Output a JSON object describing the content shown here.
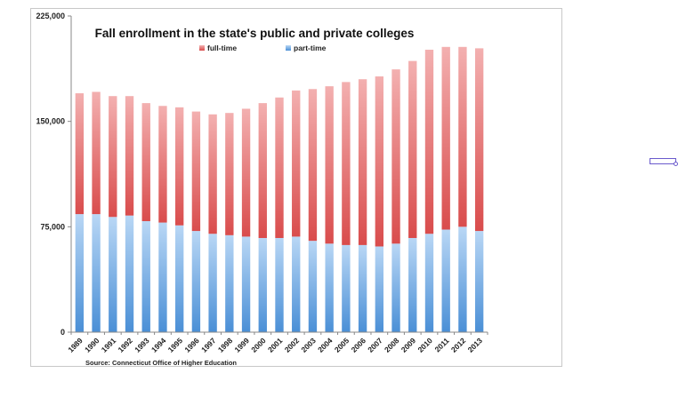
{
  "chart_data": {
    "type": "bar",
    "stacked": true,
    "title": "Fall enrollment in the state's public and private colleges",
    "source": "Source: Connecticut Office of Higher Education",
    "categories": [
      "1989",
      "1990",
      "1991",
      "1992",
      "1993",
      "1994",
      "1995",
      "1996",
      "1997",
      "1998",
      "1999",
      "2000",
      "2001",
      "2002",
      "2003",
      "2004",
      "2005",
      "2006",
      "2007",
      "2008",
      "2009",
      "2010",
      "2011",
      "2012",
      "2013"
    ],
    "series": [
      {
        "name": "part-time",
        "color": "#5b9bd5",
        "values": [
          84000,
          84000,
          82000,
          83000,
          79000,
          78000,
          76000,
          72000,
          70000,
          69000,
          68000,
          67000,
          67000,
          68000,
          65000,
          63000,
          62000,
          62000,
          61000,
          63000,
          67000,
          70000,
          73000,
          75000,
          72000
        ]
      },
      {
        "name": "full-time",
        "color": "#e06060",
        "values": [
          86000,
          87000,
          86000,
          85000,
          84000,
          83000,
          84000,
          85000,
          85000,
          87000,
          91000,
          96000,
          100000,
          104000,
          108000,
          112000,
          116000,
          118000,
          121000,
          124000,
          126000,
          131000,
          130000,
          128000,
          130000
        ]
      }
    ],
    "ylim": [
      0,
      225000
    ],
    "yticks": [
      0,
      75000,
      150000,
      225000
    ],
    "ytick_labels": [
      "0",
      "75,000",
      "150,000",
      "225,000"
    ],
    "legend_position": "top-center",
    "grid": false
  }
}
